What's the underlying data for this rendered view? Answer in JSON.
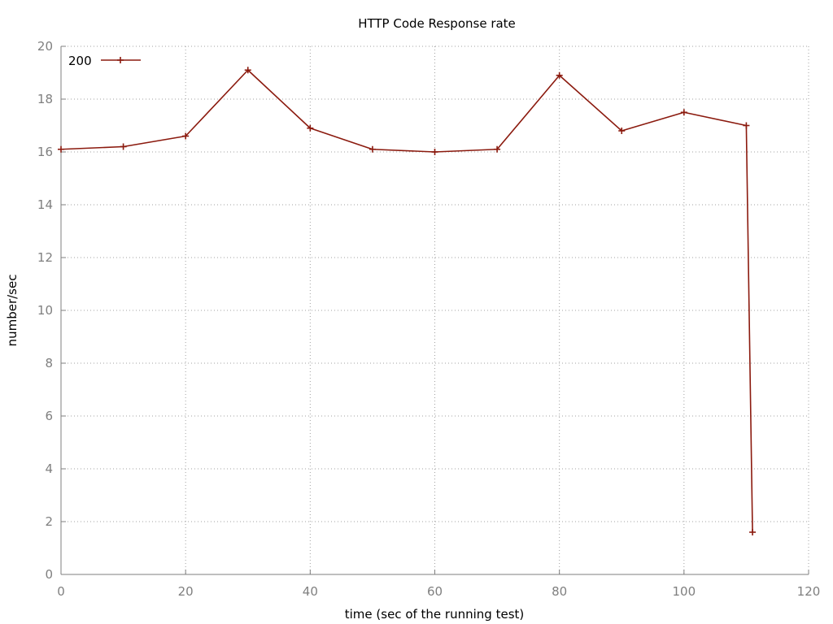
{
  "chart_data": {
    "type": "line",
    "title": "HTTP Code Response rate",
    "xlabel": "time (sec of the running test)",
    "ylabel": "number/sec",
    "xlim": [
      0,
      120
    ],
    "ylim": [
      0,
      20
    ],
    "xticks": [
      0,
      20,
      40,
      60,
      80,
      100,
      120
    ],
    "yticks": [
      0,
      2,
      4,
      6,
      8,
      10,
      12,
      14,
      16,
      18,
      20
    ],
    "grid": true,
    "legend_position": "top-left",
    "series": [
      {
        "name": "200",
        "color": "#8b1a0e",
        "marker": "plus",
        "x": [
          0,
          10,
          20,
          30,
          40,
          50,
          60,
          70,
          80,
          90,
          100,
          110,
          111
        ],
        "y": [
          16.1,
          16.2,
          16.6,
          19.1,
          16.9,
          16.1,
          16.0,
          16.1,
          18.9,
          16.8,
          17.5,
          17.0,
          1.6
        ]
      }
    ]
  }
}
